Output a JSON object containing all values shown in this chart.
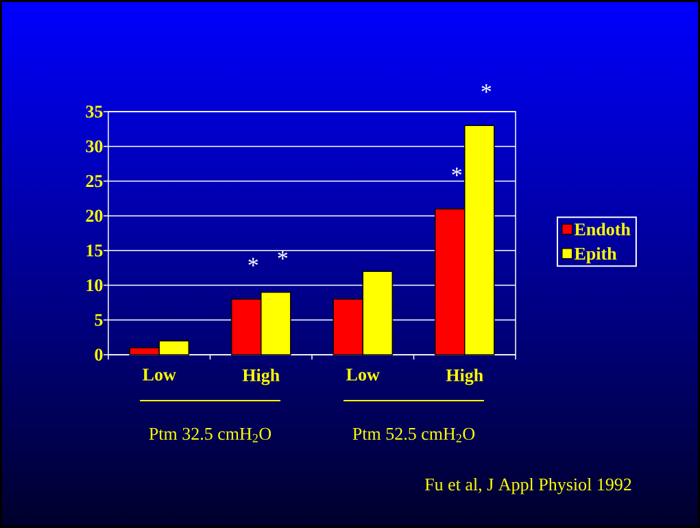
{
  "chart_data": {
    "type": "bar",
    "categories": [
      "Low",
      "High",
      "Low",
      "High"
    ],
    "series": [
      {
        "name": "Endoth",
        "color": "#ff0000",
        "values": [
          1,
          8,
          8,
          21
        ]
      },
      {
        "name": "Epith",
        "color": "#ffff00",
        "values": [
          2,
          9,
          12,
          33
        ]
      }
    ],
    "ylim": [
      0,
      35
    ],
    "yticks": [
      0,
      5,
      10,
      15,
      20,
      25,
      30,
      35
    ],
    "grid": "y",
    "legend": "right",
    "annotations": [
      "*",
      "*",
      "*",
      "*",
      "Ptm 32.5 cmH$_{2}$O",
      "Ptm 52.5 cmH$_{2}$O",
      "Fu et al, J Appl Physiol 1992"
    ]
  }
}
